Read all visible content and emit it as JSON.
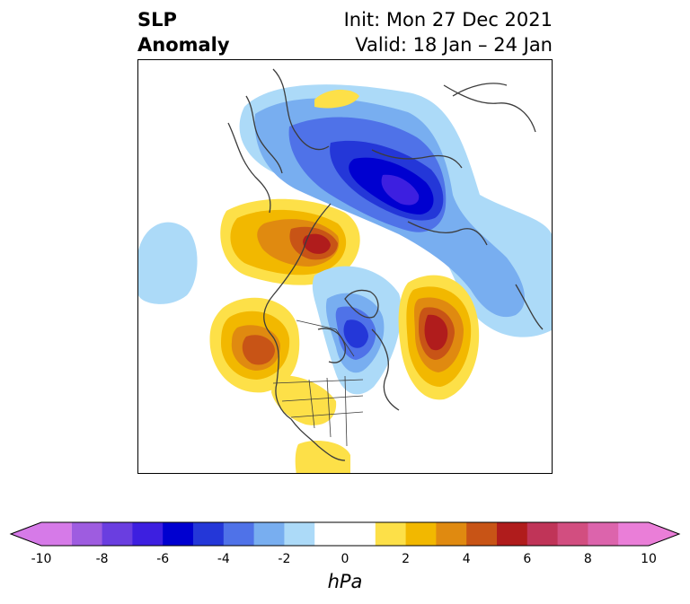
{
  "header": {
    "title_line1": "SLP",
    "title_line2": "Anomaly",
    "init": "Init: Mon 27 Dec 2021",
    "valid": "Valid: 18 Jan – 24 Jan"
  },
  "colorbar": {
    "ticks": [
      "-10",
      "-8",
      "-6",
      "-4",
      "-2",
      "0",
      "2",
      "4",
      "6",
      "8",
      "10"
    ],
    "units": "hPa",
    "colors": [
      "#d67ae8",
      "#9e5ce0",
      "#6a3ee0",
      "#3d1fe0",
      "#0000d0",
      "#2437d8",
      "#4f72e8",
      "#78aef0",
      "#acdaf8",
      "#ffffff",
      "#ffffff",
      "#fde048",
      "#f2b800",
      "#e08a10",
      "#c85416",
      "#b01c1c",
      "#c03458",
      "#d24e80",
      "#dc64ac",
      "#ea7ed8"
    ]
  }
}
